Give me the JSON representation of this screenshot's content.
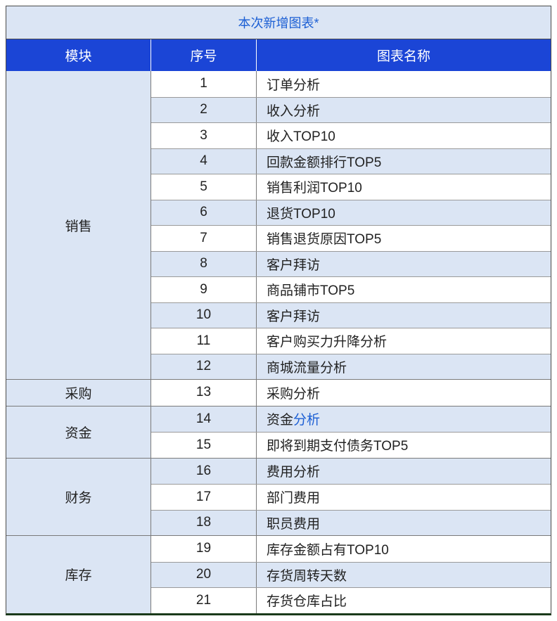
{
  "title": "本次新增图表*",
  "title_color": "#1c5fd4",
  "title_bg": "#dbe5f4",
  "header_bg": "#1b45d6",
  "header_text_color": "#ffffff",
  "stripe_even_bg": "#ffffff",
  "stripe_odd_bg": "#dbe5f4",
  "module_bg": "#dbe5f4",
  "link_color": "#1c5fd4",
  "columns": [
    "模块",
    "序号",
    "图表名称"
  ],
  "modules": [
    {
      "name": "销售",
      "rows": [
        {
          "seq": "1",
          "name": "订单分析"
        },
        {
          "seq": "2",
          "name": "收入分析"
        },
        {
          "seq": "3",
          "name": "收入TOP10"
        },
        {
          "seq": "4",
          "name": "回款金额排行TOP5"
        },
        {
          "seq": "5",
          "name": "销售利润TOP10"
        },
        {
          "seq": "6",
          "name": "退货TOP10"
        },
        {
          "seq": "7",
          "name": "销售退货原因TOP5"
        },
        {
          "seq": "8",
          "name": "客户拜访"
        },
        {
          "seq": "9",
          "name": "商品铺市TOP5"
        },
        {
          "seq": "10",
          "name": "客户拜访"
        },
        {
          "seq": "11",
          "name": "客户购买力升降分析"
        },
        {
          "seq": "12",
          "name": "商城流量分析"
        }
      ]
    },
    {
      "name": "采购",
      "rows": [
        {
          "seq": "13",
          "name": "采购分析"
        }
      ]
    },
    {
      "name": "资金",
      "rows": [
        {
          "seq": "14",
          "name_prefix": "资金",
          "name_link": "分析"
        },
        {
          "seq": "15",
          "name": "即将到期支付债务TOP5"
        }
      ]
    },
    {
      "name": "财务",
      "rows": [
        {
          "seq": "16",
          "name": "费用分析"
        },
        {
          "seq": "17",
          "name": "部门费用"
        },
        {
          "seq": "18",
          "name": "职员费用"
        }
      ]
    },
    {
      "name": "库存",
      "rows": [
        {
          "seq": "19",
          "name": "库存金额占有TOP10"
        },
        {
          "seq": "20",
          "name": "存货周转天数"
        },
        {
          "seq": "21",
          "name": "存货仓库占比"
        }
      ]
    }
  ]
}
